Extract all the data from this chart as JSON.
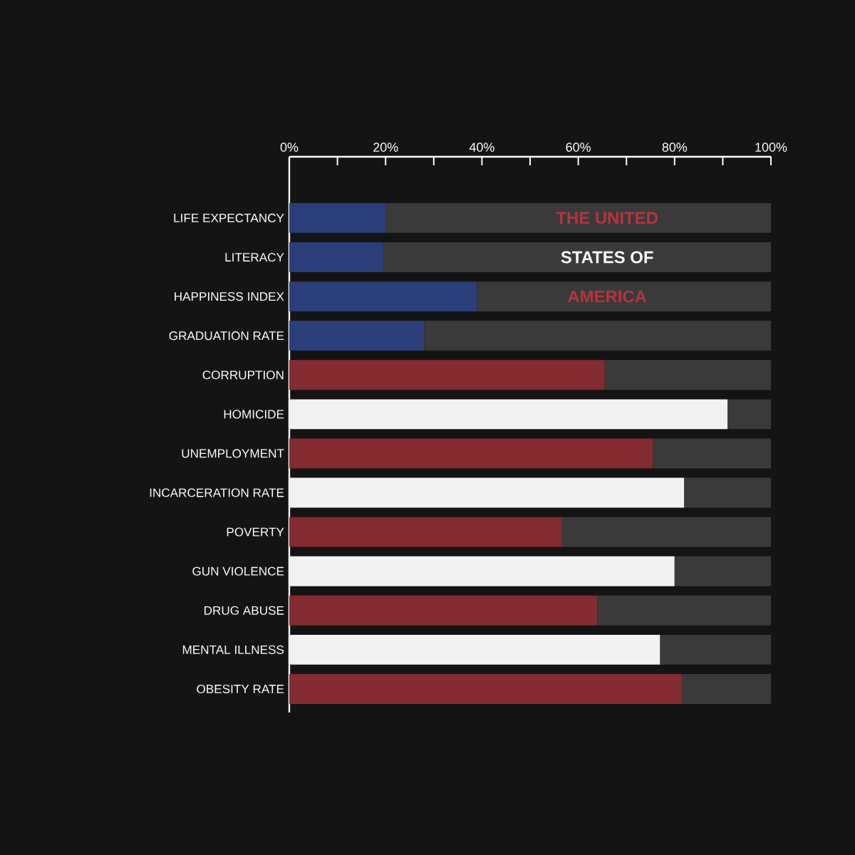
{
  "chart_data": {
    "type": "bar",
    "orientation": "horizontal",
    "stacked": true,
    "categories": [
      "LIFE EXPECTANCY",
      "LITERACY",
      "HAPPINESS INDEX",
      "GRADUATION RATE",
      "CORRUPTION",
      "HOMICIDE",
      "UNEMPLOYMENT",
      "INCARCERATION RATE",
      "POVERTY",
      "GUN VIOLENCE",
      "DRUG ABUSE",
      "MENTAL ILLNESS",
      "OBESITY RATE"
    ],
    "series": [
      {
        "colors": [
          "#2b3f7a",
          "#2b3f7a",
          "#2b3f7a",
          "#2b3f7a",
          "#842a31",
          "#f2f2f2",
          "#842a31",
          "#f2f2f2",
          "#842a31",
          "#f2f2f2",
          "#842a31",
          "#f2f2f2",
          "#842a31"
        ],
        "values": [
          20,
          19.5,
          39,
          28,
          65.5,
          91,
          75.5,
          82,
          56.5,
          80,
          64,
          77,
          81.5
        ]
      },
      {
        "color": "#3a3a3a",
        "values": [
          80,
          80.5,
          61,
          72,
          34.5,
          9,
          24.5,
          18,
          43.5,
          20,
          36,
          23,
          18.5
        ]
      }
    ],
    "xlim": [
      0,
      100
    ],
    "xticks": [
      {
        "value": 0,
        "label": "0%"
      },
      {
        "value": 10,
        "label": null
      },
      {
        "value": 20,
        "label": "20%"
      },
      {
        "value": 30,
        "label": null
      },
      {
        "value": 40,
        "label": "40%"
      },
      {
        "value": 50,
        "label": null
      },
      {
        "value": 60,
        "label": "60%"
      },
      {
        "value": 70,
        "label": null
      },
      {
        "value": 80,
        "label": "80%"
      },
      {
        "value": 90,
        "label": null
      },
      {
        "value": 100,
        "label": "100%"
      }
    ],
    "annotations": [
      "THE UNITED",
      "STATES OF",
      "AMERICA"
    ],
    "grid": false
  }
}
